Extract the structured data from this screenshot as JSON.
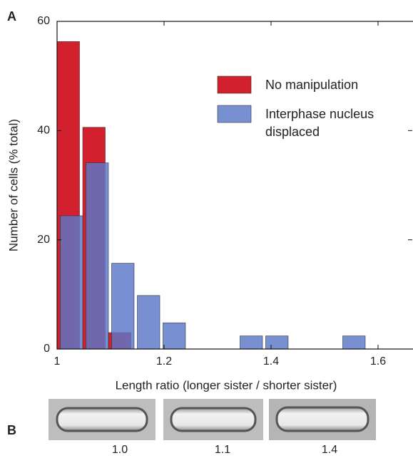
{
  "chart_data": {
    "type": "bar",
    "panel_label": "A",
    "xlabel": "Length ratio (longer sister / shorter sister)",
    "ylabel": "Number of cells (% total)",
    "series": [
      {
        "name": "No manipulation",
        "color": "#d3202e",
        "x": [
          1.021,
          1.069,
          1.117
        ],
        "values": [
          56.3,
          40.6,
          3
        ]
      },
      {
        "name": "Interphase nucleus displaced",
        "color": "#5a78c8",
        "x": [
          1.027,
          1.075,
          1.123,
          1.171,
          1.219,
          1.363,
          1.411,
          1.555
        ],
        "values": [
          24.4,
          34.1,
          15.7,
          9.8,
          4.8,
          2.4,
          2.4,
          2.4
        ]
      }
    ],
    "xlim": [
      1,
      1.664
    ],
    "xticks": [
      1,
      1.2,
      1.4,
      1.6
    ],
    "ylim": [
      0,
      60
    ],
    "yticks": [
      0,
      20,
      40,
      60
    ],
    "legend": "upper right",
    "grid": false
  },
  "panel_b": {
    "label": "B",
    "captions": [
      "1.0",
      "1.1",
      "1.4"
    ]
  }
}
